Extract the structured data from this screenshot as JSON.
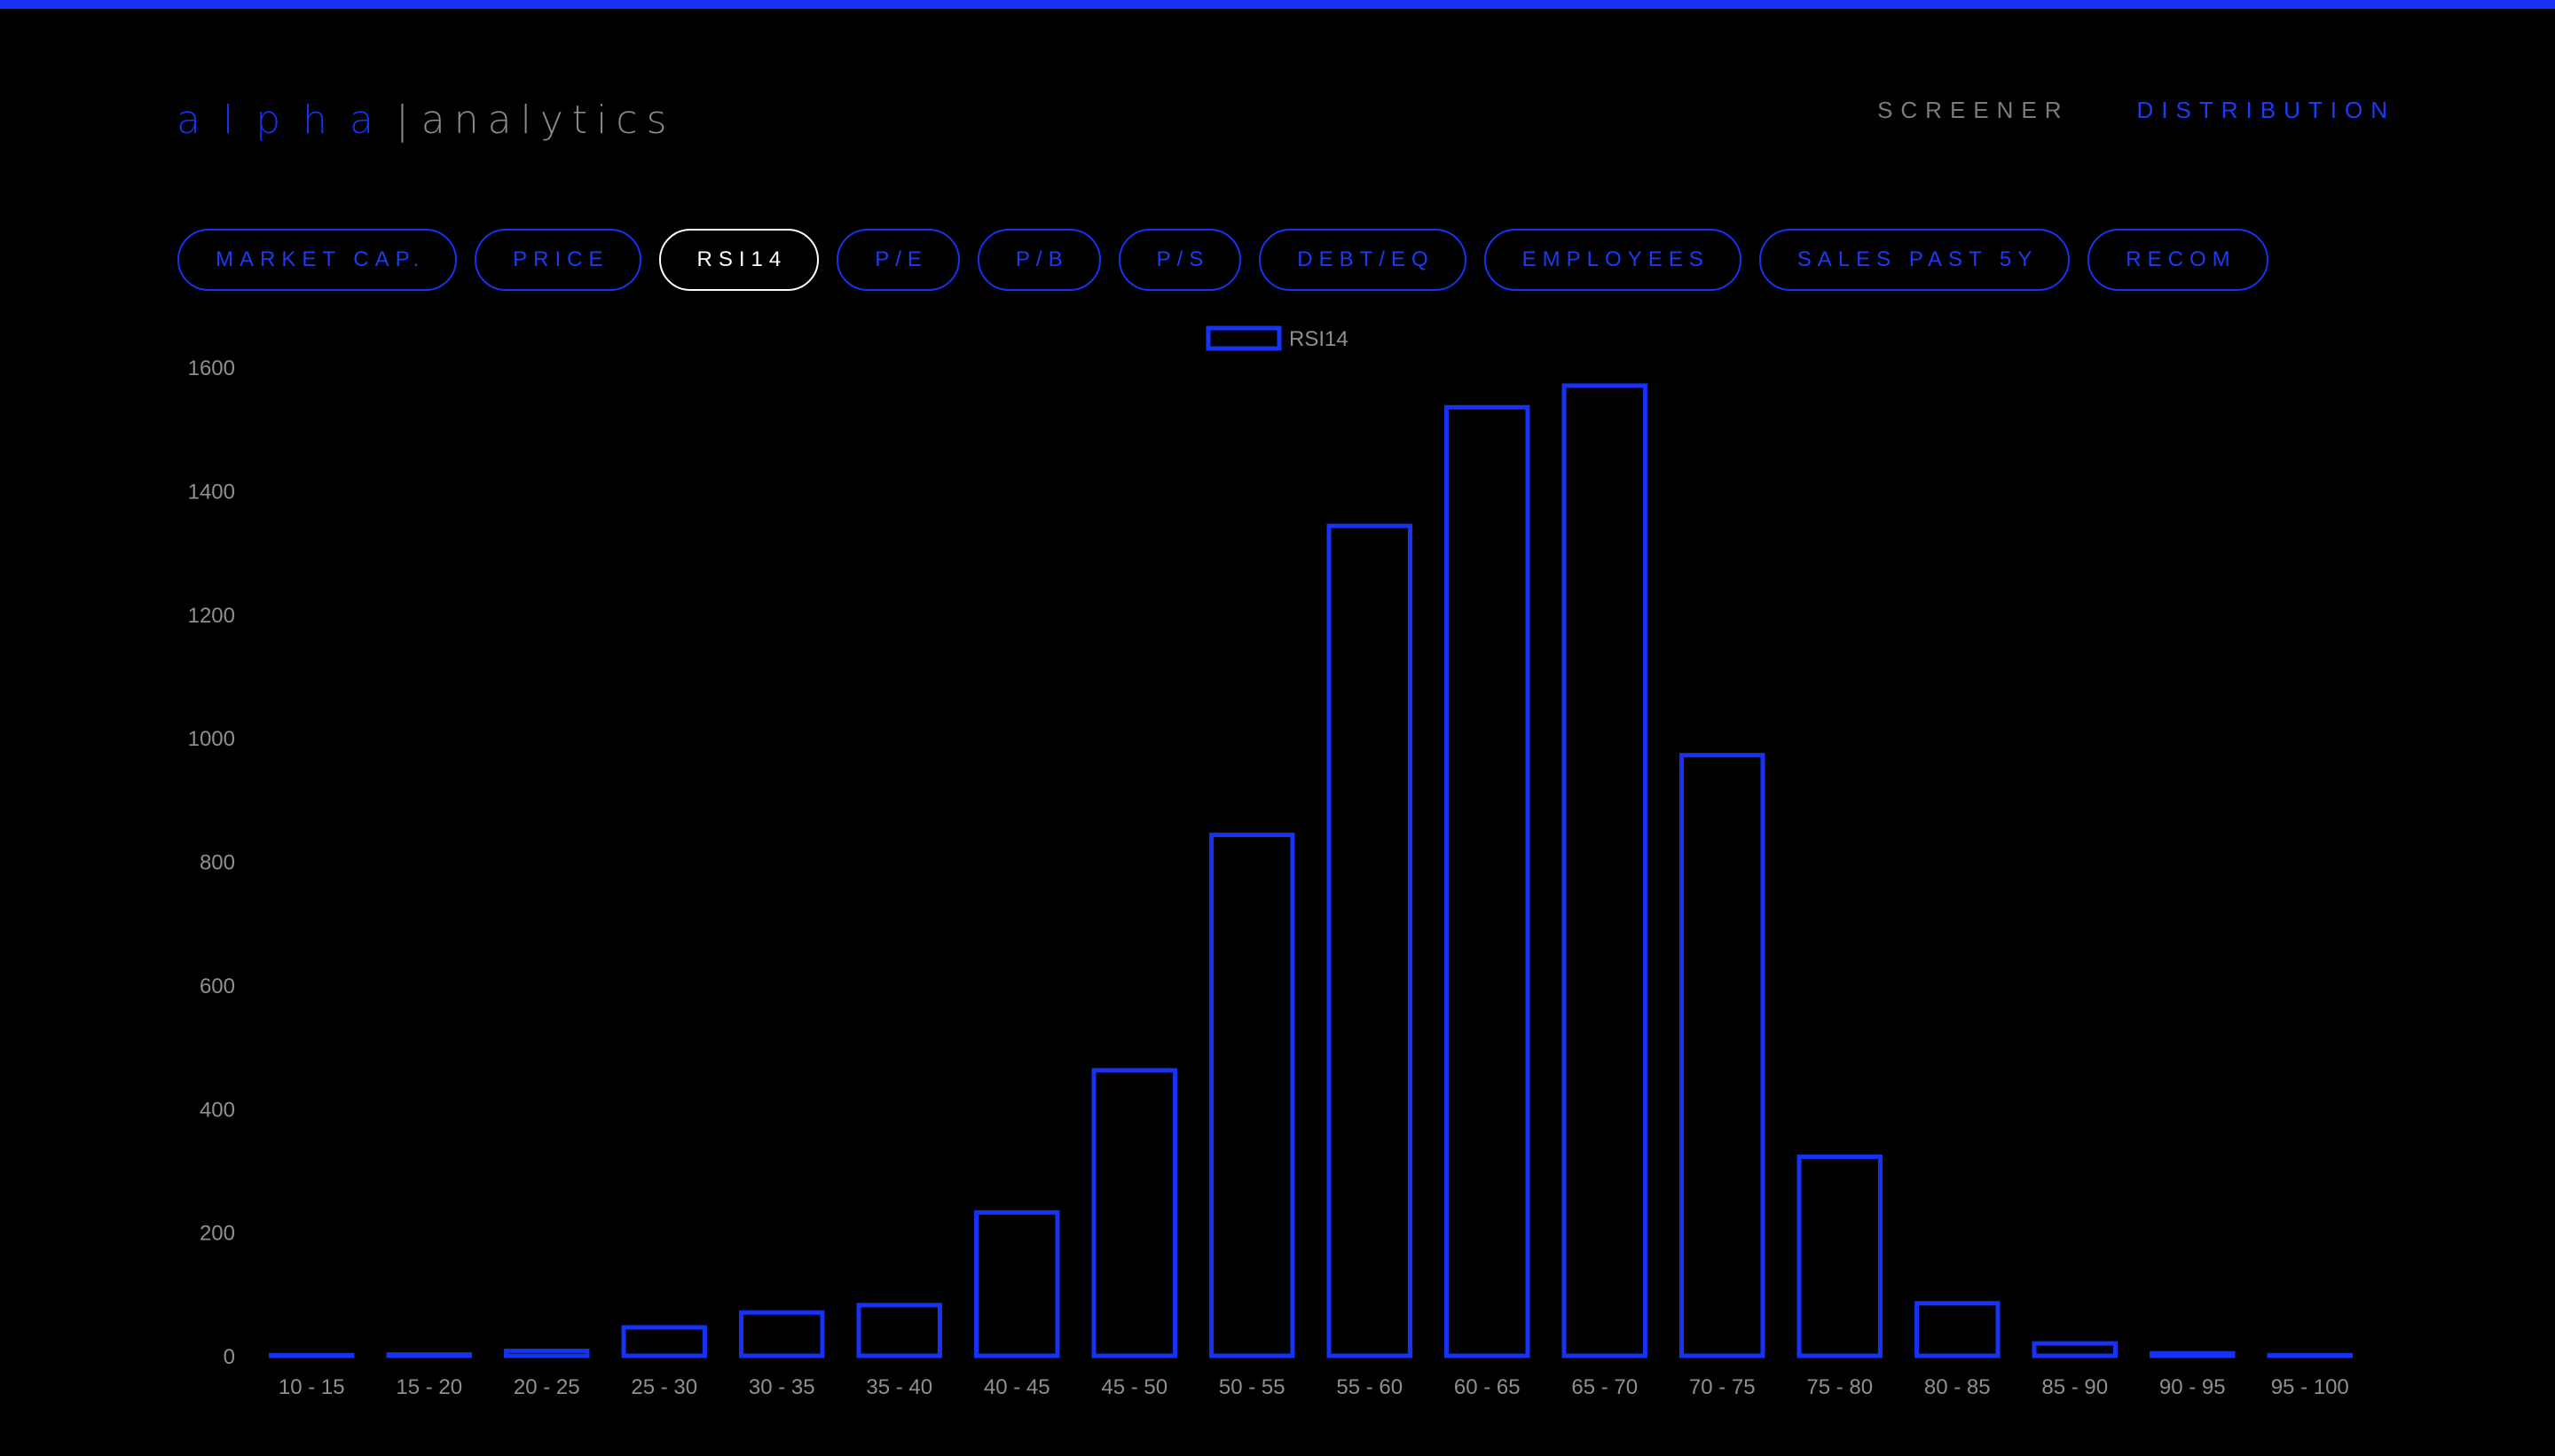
{
  "brand": {
    "primary": "alpha",
    "separator": "|",
    "secondary": "analytics",
    "accent_color": "#1633f5"
  },
  "nav": {
    "items": [
      {
        "label": "SCREENER",
        "active": false
      },
      {
        "label": "DISTRIBUTION",
        "active": true
      }
    ]
  },
  "tabs": [
    {
      "label": "MARKET CAP.",
      "active": false
    },
    {
      "label": "PRICE",
      "active": false
    },
    {
      "label": "RSI14",
      "active": true
    },
    {
      "label": "P/E",
      "active": false
    },
    {
      "label": "P/B",
      "active": false
    },
    {
      "label": "P/S",
      "active": false
    },
    {
      "label": "DEBT/EQ",
      "active": false
    },
    {
      "label": "EMPLOYEES",
      "active": false
    },
    {
      "label": "SALES PAST 5Y",
      "active": false
    },
    {
      "label": "RECOM",
      "active": false
    }
  ],
  "chart_data": {
    "type": "bar",
    "categories": [
      "10 - 15",
      "15 - 20",
      "20 - 25",
      "25 - 30",
      "30 - 35",
      "35 - 40",
      "40 - 45",
      "45 - 50",
      "50 - 55",
      "55 - 60",
      "60 - 65",
      "65 - 70",
      "70 - 75",
      "75 - 80",
      "80 - 85",
      "85 - 90",
      "90 - 95",
      "95 - 100"
    ],
    "series": [
      {
        "name": "RSI14",
        "values": [
          1,
          2,
          8,
          46,
          70,
          82,
          232,
          462,
          843,
          1343,
          1535,
          1570,
          972,
          322,
          85,
          20,
          4,
          1
        ]
      }
    ],
    "yticks": [
      0,
      200,
      400,
      600,
      800,
      1000,
      1200,
      1400,
      1600
    ],
    "ylim": [
      0,
      1600
    ],
    "legend_position": "top-center",
    "bar_style": "outline",
    "bar_color": "#1633f5",
    "grid": false
  }
}
